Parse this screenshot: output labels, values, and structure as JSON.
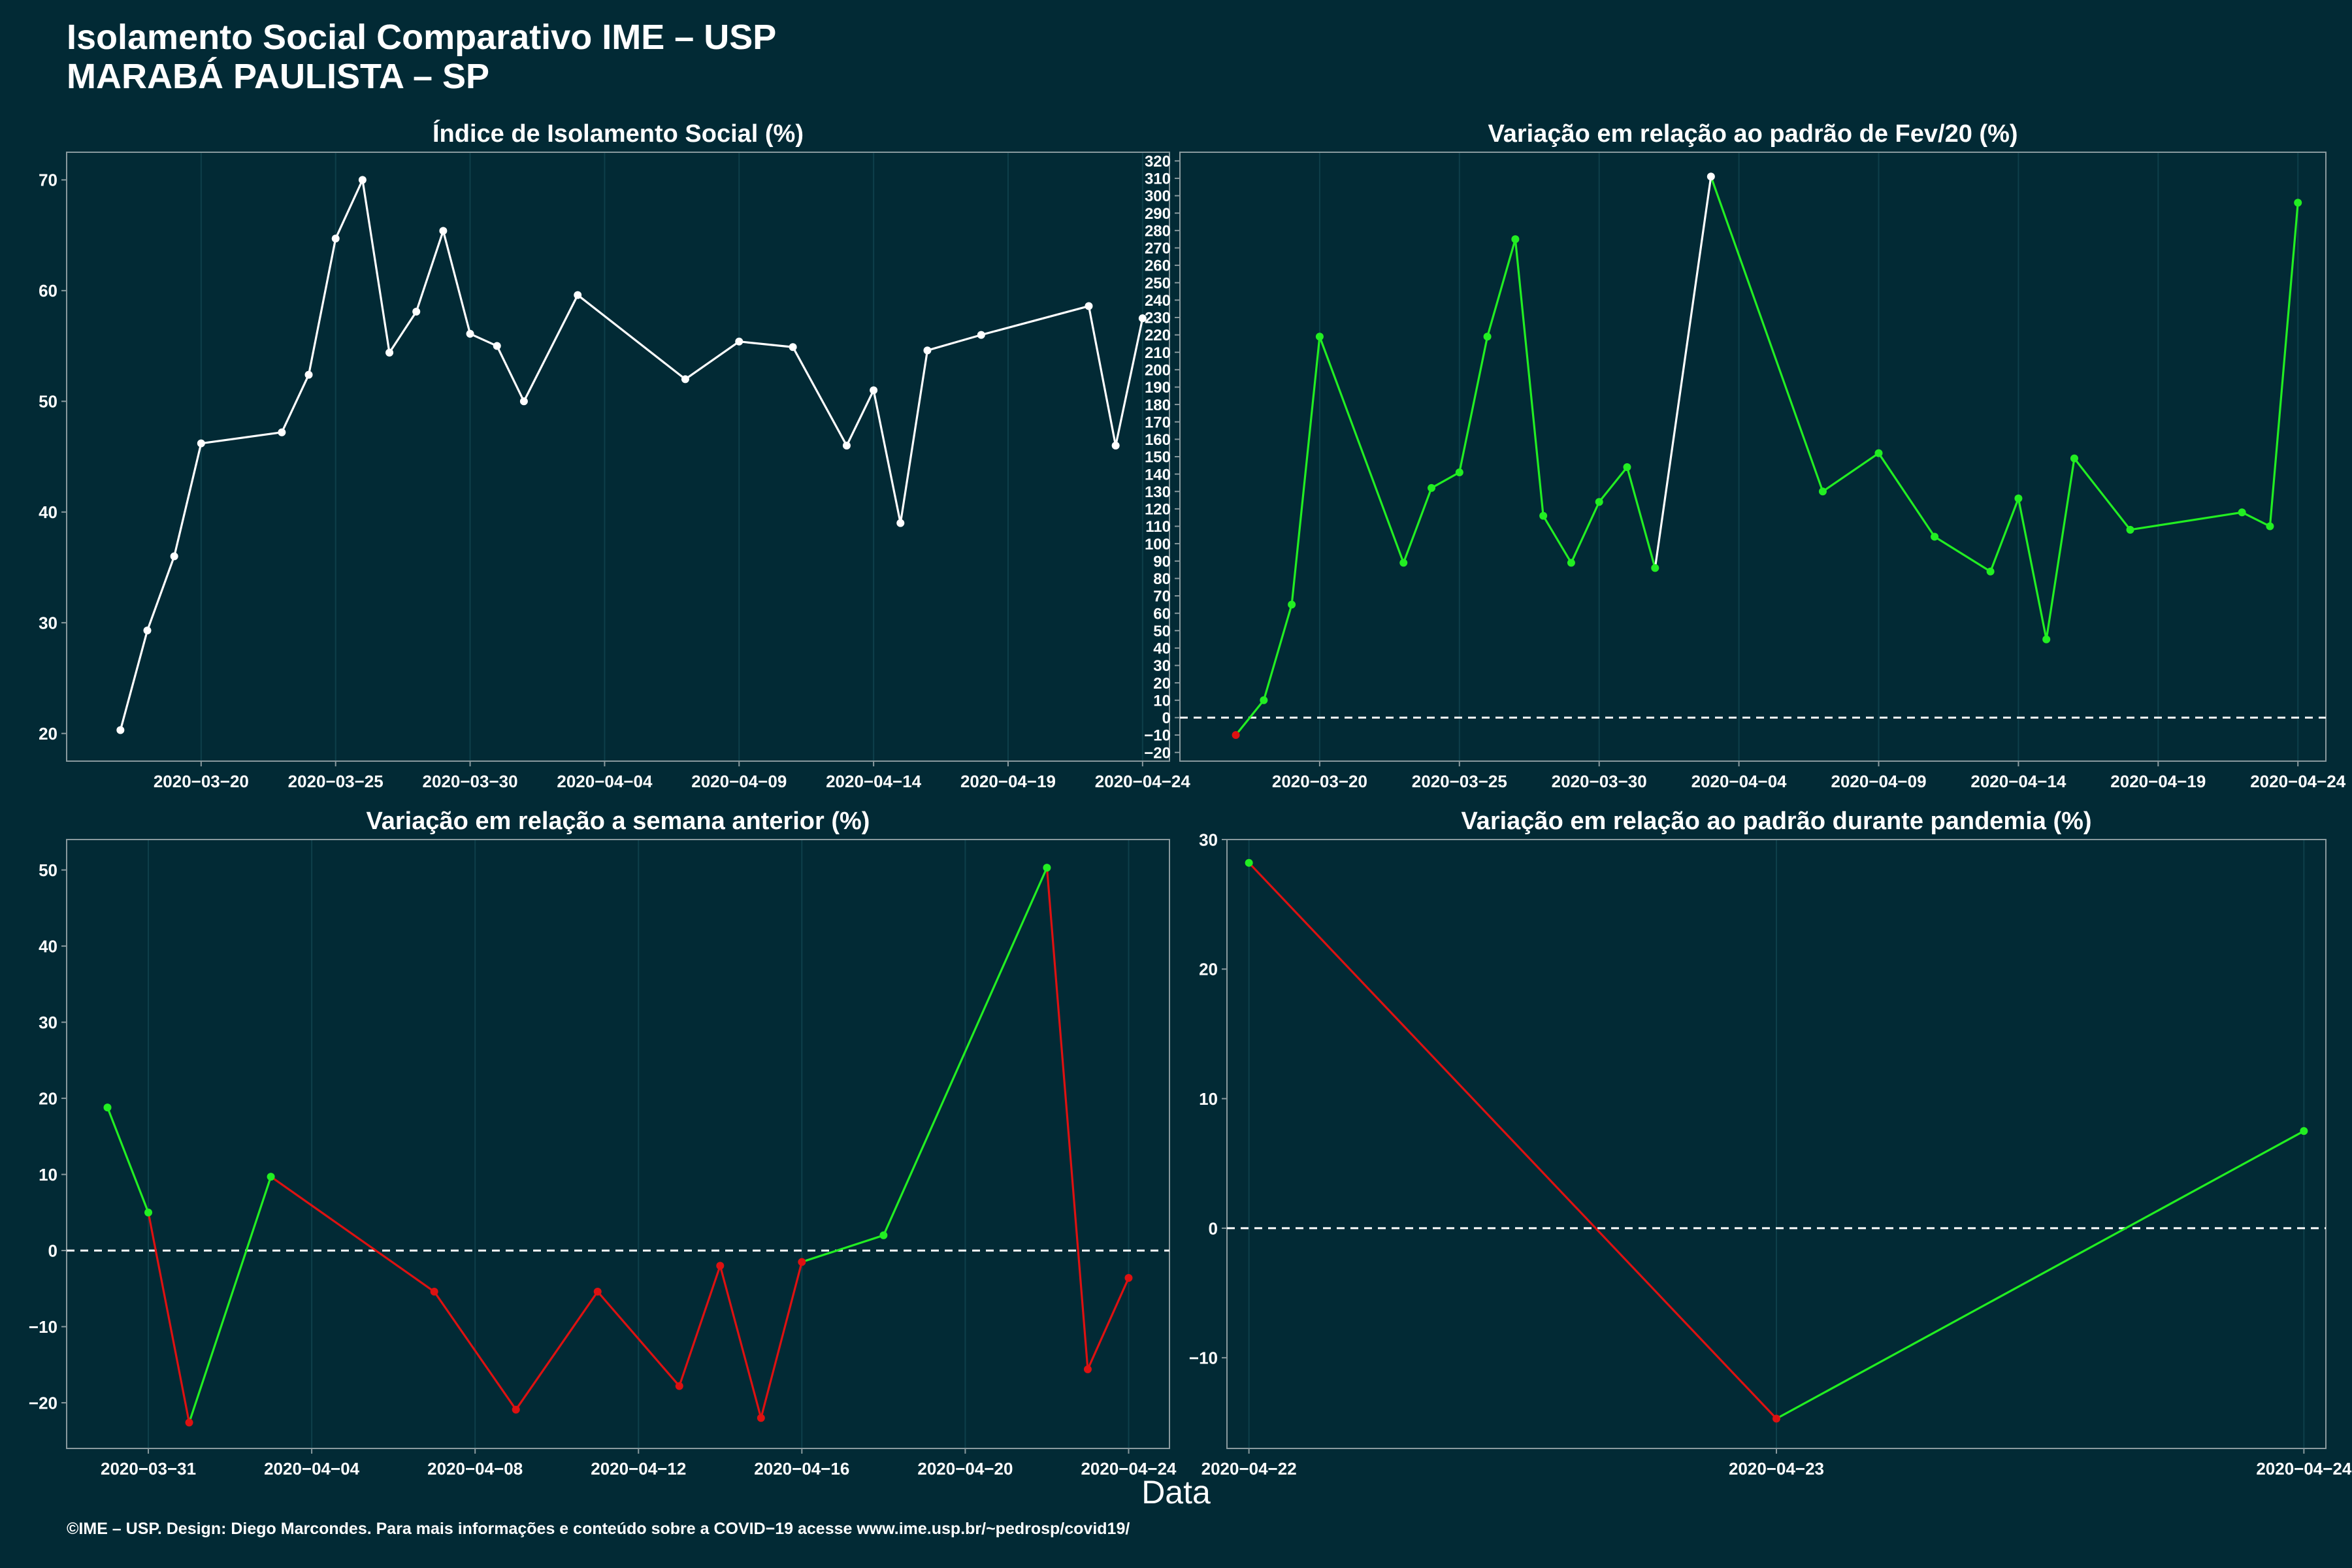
{
  "header": {
    "title": "Isolamento Social Comparativo IME – USP",
    "subtitle": "MARABÁ PAULISTA – SP"
  },
  "xlabel": "Data",
  "footer": "©IME – USP. Design: Diego Marcondes. Para mais informações e conteúdo sobre a COVID−19 acesse www.ime.usp.br/~pedrosp/covid19/",
  "colors": {
    "background": "#022a35",
    "panel_border": "#8a9a9e",
    "grid": "#0e3f4a",
    "line_white": "#ffffff",
    "positive": "#22ee22",
    "negative": "#dd1111"
  },
  "chart_data": [
    {
      "id": "p1",
      "type": "line",
      "title": "Índice de Isolamento Social (%)",
      "xlim": [
        "2020-03-15",
        "2020-04-25"
      ],
      "ylim": [
        17.5,
        72.5
      ],
      "x_ticks": [
        "2020-03-20",
        "2020-03-25",
        "2020-03-30",
        "2020-04-04",
        "2020-04-09",
        "2020-04-14",
        "2020-04-19",
        "2020-04-24"
      ],
      "y_ticks": [
        20,
        30,
        40,
        50,
        60,
        70
      ],
      "baseline": null,
      "x": [
        "2020-03-17",
        "2020-03-18",
        "2020-03-19",
        "2020-03-20",
        "2020-03-23",
        "2020-03-24",
        "2020-03-25",
        "2020-03-26",
        "2020-03-27",
        "2020-03-28",
        "2020-03-29",
        "2020-03-30",
        "2020-03-31",
        "2020-04-01",
        "2020-04-03",
        "2020-04-07",
        "2020-04-09",
        "2020-04-11",
        "2020-04-13",
        "2020-04-14",
        "2020-04-15",
        "2020-04-16",
        "2020-04-18",
        "2020-04-22",
        "2020-04-23",
        "2020-04-24"
      ],
      "values": [
        20.3,
        29.3,
        36.0,
        46.2,
        47.2,
        52.4,
        64.7,
        70.0,
        54.4,
        58.1,
        65.4,
        56.1,
        55.0,
        50.0,
        59.6,
        52.0,
        55.4,
        54.9,
        46.0,
        51.0,
        39.0,
        54.6,
        56.0,
        58.6,
        46.0,
        57.5
      ],
      "colors": [
        "w",
        "w",
        "w",
        "w",
        "w",
        "w",
        "w",
        "w",
        "w",
        "w",
        "w",
        "w",
        "w",
        "w",
        "w",
        "w",
        "w",
        "w",
        "w",
        "w",
        "w",
        "w",
        "w",
        "w",
        "w",
        "w"
      ]
    },
    {
      "id": "p2",
      "type": "line",
      "title": "Variação em relação ao padrão de Fev/20 (%)",
      "xlim": [
        "2020-03-15",
        "2020-04-25"
      ],
      "ylim": [
        -25,
        325
      ],
      "x_ticks": [
        "2020-03-20",
        "2020-03-25",
        "2020-03-30",
        "2020-04-04",
        "2020-04-09",
        "2020-04-14",
        "2020-04-19",
        "2020-04-24"
      ],
      "y_ticks": [
        -20,
        -10,
        0,
        10,
        20,
        30,
        40,
        50,
        60,
        70,
        80,
        90,
        100,
        110,
        120,
        130,
        140,
        150,
        160,
        170,
        180,
        190,
        200,
        210,
        220,
        230,
        240,
        250,
        260,
        270,
        280,
        290,
        300,
        310,
        320
      ],
      "baseline": 0,
      "x": [
        "2020-03-17",
        "2020-03-18",
        "2020-03-19",
        "2020-03-20",
        "2020-03-23",
        "2020-03-24",
        "2020-03-25",
        "2020-03-26",
        "2020-03-27",
        "2020-03-28",
        "2020-03-29",
        "2020-03-30",
        "2020-03-31",
        "2020-04-01",
        "2020-04-03",
        "2020-04-07",
        "2020-04-09",
        "2020-04-11",
        "2020-04-13",
        "2020-04-14",
        "2020-04-15",
        "2020-04-16",
        "2020-04-18",
        "2020-04-22",
        "2020-04-23",
        "2020-04-24"
      ],
      "values": [
        -10,
        10,
        65,
        219,
        89,
        132,
        141,
        219,
        275,
        116,
        89,
        124,
        144,
        86,
        311,
        130,
        152,
        104,
        84,
        126,
        45,
        149,
        108,
        118,
        110,
        296
      ],
      "colors": [
        "n",
        "p",
        "p",
        "p",
        "p",
        "p",
        "p",
        "p",
        "p",
        "p",
        "p",
        "p",
        "p",
        "p",
        "w",
        "p",
        "p",
        "p",
        "p",
        "p",
        "p",
        "p",
        "p",
        "p",
        "p",
        "p"
      ]
    },
    {
      "id": "p3",
      "type": "line",
      "title": "Variação em relação a semana anterior (%)",
      "xlim": [
        "2020-03-29",
        "2020-04-25"
      ],
      "ylim": [
        -26,
        54
      ],
      "x_ticks": [
        "2020-03-31",
        "2020-04-04",
        "2020-04-08",
        "2020-04-12",
        "2020-04-16",
        "2020-04-20",
        "2020-04-24"
      ],
      "y_ticks": [
        -20,
        -10,
        0,
        10,
        20,
        30,
        40,
        50
      ],
      "baseline": 0,
      "x": [
        "2020-03-30",
        "2020-03-31",
        "2020-04-01",
        "2020-04-03",
        "2020-04-07",
        "2020-04-09",
        "2020-04-11",
        "2020-04-13",
        "2020-04-14",
        "2020-04-15",
        "2020-04-16",
        "2020-04-18",
        "2020-04-22",
        "2020-04-23",
        "2020-04-24"
      ],
      "values": [
        18.8,
        5.0,
        -22.6,
        9.7,
        -5.4,
        -20.9,
        -5.4,
        -17.8,
        -2.0,
        -22.0,
        -1.5,
        2.0,
        50.3,
        -15.6,
        -3.6
      ],
      "colors": [
        "p",
        "p",
        "n",
        "p",
        "n",
        "n",
        "n",
        "n",
        "n",
        "n",
        "n",
        "p",
        "p",
        "n",
        "n"
      ]
    },
    {
      "id": "p4",
      "type": "line",
      "title": "Variação em relação ao padrão durante pandemia (%)",
      "xlim": [
        "2020-04-21T23:00",
        "2020-04-24T01:00"
      ],
      "ylim": [
        -17,
        30
      ],
      "x_ticks": [
        "2020-04-22",
        "2020-04-23",
        "2020-04-24"
      ],
      "y_ticks": [
        -10,
        0,
        10,
        20,
        30
      ],
      "baseline": 0,
      "x": [
        "2020-04-22",
        "2020-04-23",
        "2020-04-24"
      ],
      "values": [
        28.2,
        -14.7,
        7.5
      ],
      "colors": [
        "p",
        "n",
        "p"
      ]
    }
  ]
}
